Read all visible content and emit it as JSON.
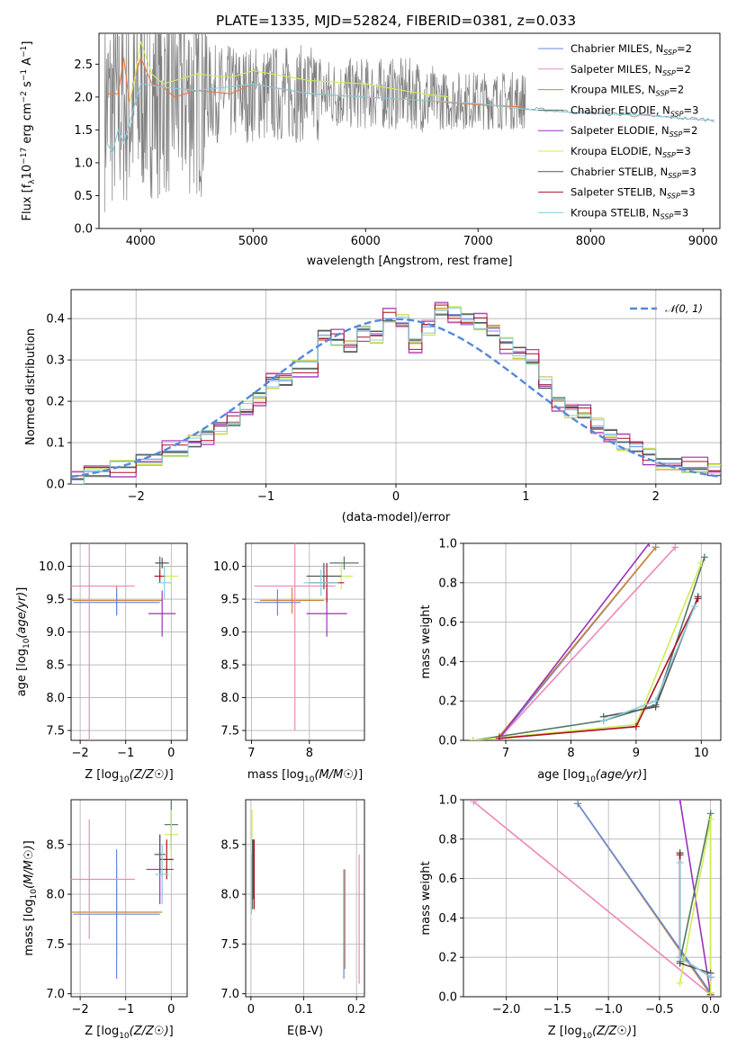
{
  "figure": {
    "title": "PLATE=1335, MJD=52824, FIBERID=0381, z=0.033"
  },
  "series_colors": [
    "#6688dd",
    "#ee88bb",
    "#cc8833",
    "#557766",
    "#9933bb",
    "#ccee55",
    "#555555",
    "#aa1122",
    "#88ccdd"
  ],
  "chart_data": [
    {
      "id": "spectrum",
      "type": "line",
      "title": "PLATE=1335, MJD=52824, FIBERID=0381, z=0.033",
      "xlabel": "wavelength [Angstrom, rest frame]",
      "ylabel": "Flux [f",
      "ylabel_unit": "10",
      "xlim": [
        3630,
        9150
      ],
      "ylim": [
        0,
        2.97
      ],
      "xticks": [
        4000,
        5000,
        6000,
        7000,
        8000,
        9000
      ],
      "yticks": [
        0.0,
        0.5,
        1.0,
        1.5,
        2.0,
        2.5
      ],
      "grid": false,
      "legend_position": "top-right",
      "legend": [
        {
          "model": "Chabrier MILES, N",
          "nssp": "2"
        },
        {
          "model": "Salpeter MILES, N",
          "nssp": "2"
        },
        {
          "model": "Kroupa MILES, N",
          "nssp": "2"
        },
        {
          "model": "Chabrier ELODIE, N",
          "nssp": "3"
        },
        {
          "model": "Salpeter ELODIE, N",
          "nssp": "2"
        },
        {
          "model": "Kroupa ELODIE, N",
          "nssp": "3"
        },
        {
          "model": "Chabrier STELIB, N",
          "nssp": "3"
        },
        {
          "model": "Salpeter STELIB, N",
          "nssp": "3"
        },
        {
          "model": "Kroupa STELIB, N",
          "nssp": "3"
        }
      ],
      "observed": {
        "x_range": [
          3680,
          7420
        ],
        "median_flux": 2.05,
        "color": "#808080"
      },
      "models": [
        {
          "x": [
            3710,
            3800,
            3850,
            3900,
            3950,
            4000,
            4100,
            4200,
            4300,
            4500,
            4800,
            5000,
            5500,
            6000,
            6500,
            7000,
            7400
          ],
          "y": [
            2.05,
            2.05,
            2.6,
            1.9,
            2.3,
            2.6,
            2.2,
            2.15,
            2.0,
            2.1,
            2.05,
            2.2,
            2.05,
            2.0,
            1.95,
            1.88,
            1.85
          ],
          "color": "#ee7744",
          "name": "MILES"
        },
        {
          "x": [
            3900,
            3950,
            4000,
            4100,
            4200,
            4300,
            4500,
            4800,
            5000,
            5500,
            6000,
            6500,
            6750
          ],
          "y": [
            1.9,
            2.3,
            2.85,
            2.35,
            2.2,
            2.25,
            2.35,
            2.3,
            2.4,
            2.25,
            2.2,
            2.05,
            2.0
          ],
          "color": "#ccee55",
          "name": "ELODIE"
        },
        {
          "x": [
            3700,
            3750,
            3800,
            3850,
            3900,
            4000,
            4200,
            4500,
            5000,
            5500,
            6000,
            6500,
            7000,
            7500,
            8000,
            8500,
            9000,
            9100
          ],
          "y": [
            1.3,
            1.15,
            1.5,
            1.3,
            1.6,
            2.2,
            2.15,
            2.1,
            2.2,
            2.05,
            2.0,
            1.95,
            1.9,
            1.8,
            1.75,
            1.72,
            1.65,
            1.65
          ],
          "color": "#88ccdd",
          "name": "STELIB"
        }
      ]
    },
    {
      "id": "residuals",
      "type": "line",
      "xlabel": "(data-model)/error",
      "ylabel": "Normed distribution",
      "xlim": [
        -2.5,
        2.5
      ],
      "ylim": [
        0,
        0.47
      ],
      "xticks": [
        -2,
        -1,
        0,
        1,
        2
      ],
      "xtick_labels": [
        "−2",
        "−1",
        "0",
        "1",
        "2"
      ],
      "yticks": [
        0.0,
        0.1,
        0.2,
        0.3,
        0.4
      ],
      "grid": true,
      "legend_position": "top-right",
      "reference_label": "𝒩(0, 1)",
      "reference": {
        "mean": 0,
        "sigma": 1,
        "color": "#5588dd"
      },
      "bin_edges": [
        -2.5,
        -2.4,
        -2.2,
        -2.0,
        -1.8,
        -1.6,
        -1.5,
        -1.4,
        -1.3,
        -1.2,
        -1.1,
        -1.0,
        -0.9,
        -0.8,
        -0.6,
        -0.5,
        -0.4,
        -0.3,
        -0.2,
        -0.1,
        0.0,
        0.1,
        0.2,
        0.3,
        0.4,
        0.5,
        0.6,
        0.7,
        0.8,
        0.9,
        1.0,
        1.1,
        1.2,
        1.3,
        1.4,
        1.5,
        1.6,
        1.7,
        1.8,
        1.9,
        2.0,
        2.2,
        2.4,
        2.5
      ],
      "hist_values": [
        0.01,
        0.03,
        0.04,
        0.06,
        0.08,
        0.1,
        0.12,
        0.14,
        0.15,
        0.18,
        0.21,
        0.25,
        0.25,
        0.28,
        0.36,
        0.35,
        0.33,
        0.37,
        0.36,
        0.4,
        0.39,
        0.34,
        0.38,
        0.42,
        0.41,
        0.4,
        0.39,
        0.37,
        0.34,
        0.32,
        0.3,
        0.24,
        0.2,
        0.18,
        0.17,
        0.14,
        0.12,
        0.1,
        0.09,
        0.07,
        0.05,
        0.04,
        0.03
      ]
    },
    {
      "id": "age-vs-Z",
      "type": "scatter",
      "xlabel": "Z [log",
      "ylabel": "age  [log",
      "xlim": [
        -2.2,
        0.35
      ],
      "ylim": [
        7.35,
        10.35
      ],
      "xticks": [
        -2,
        -1,
        0
      ],
      "xtick_labels": [
        "−2",
        "−1",
        "0"
      ],
      "yticks": [
        7.5,
        8.0,
        8.5,
        9.0,
        9.5,
        10.0
      ],
      "grid": true,
      "points": [
        {
          "x": -1.2,
          "y": 9.48,
          "xerr": 1.0,
          "yerr": 0.22,
          "color": "#cc8833"
        },
        {
          "x": -1.2,
          "y": 9.45,
          "xerr": 0.95,
          "yerr": 0.2,
          "color": "#6688dd"
        },
        {
          "x": -1.8,
          "y": 9.7,
          "xerr": 1.0,
          "yerr": 2.45,
          "color": "#ee88bb"
        },
        {
          "x": -0.25,
          "y": 10.05,
          "xerr": 0.1,
          "yerr": 0.1,
          "color": "#557766"
        },
        {
          "x": -0.2,
          "y": 9.28,
          "xerr": 0.3,
          "yerr": 0.35,
          "color": "#9933bb"
        },
        {
          "x": 0.0,
          "y": 9.85,
          "xerr": 0.15,
          "yerr": 0.15,
          "color": "#ccee55"
        },
        {
          "x": -0.2,
          "y": 10.05,
          "xerr": 0.15,
          "yerr": 0.08,
          "color": "#555555"
        },
        {
          "x": -0.25,
          "y": 9.85,
          "xerr": 0.12,
          "yerr": 0.1,
          "color": "#aa1122"
        },
        {
          "x": -0.15,
          "y": 9.75,
          "xerr": 0.15,
          "yerr": 0.25,
          "color": "#88ccdd"
        }
      ]
    },
    {
      "id": "age-vs-mass",
      "type": "scatter",
      "xlabel": "mass [log",
      "xlim": [
        6.9,
        8.95
      ],
      "ylim": [
        7.35,
        10.35
      ],
      "xticks": [
        7,
        8
      ],
      "yticks": [
        7.5,
        8.0,
        8.5,
        9.0,
        9.5,
        10.0
      ],
      "grid": true,
      "points": [
        {
          "x": 7.7,
          "y": 9.48,
          "xerr": 0.55,
          "yerr": 0.2,
          "color": "#cc8833"
        },
        {
          "x": 7.45,
          "y": 9.45,
          "xerr": 0.4,
          "yerr": 0.2,
          "color": "#6688dd"
        },
        {
          "x": 7.75,
          "y": 9.7,
          "xerr": 0.7,
          "yerr": 2.2,
          "color": "#ee88bb"
        },
        {
          "x": 8.6,
          "y": 10.05,
          "xerr": 0.25,
          "yerr": 0.1,
          "color": "#557766"
        },
        {
          "x": 8.3,
          "y": 9.28,
          "xerr": 0.35,
          "yerr": 0.35,
          "color": "#9933bb"
        },
        {
          "x": 8.55,
          "y": 9.85,
          "xerr": 0.2,
          "yerr": 0.2,
          "color": "#ccee55"
        },
        {
          "x": 8.25,
          "y": 9.85,
          "xerr": 0.3,
          "yerr": 0.2,
          "color": "#555555"
        },
        {
          "x": 8.3,
          "y": 9.75,
          "xerr": 0.3,
          "yerr": 0.3,
          "color": "#aa1122"
        },
        {
          "x": 8.2,
          "y": 9.75,
          "xerr": 0.3,
          "yerr": 0.2,
          "color": "#88ccdd"
        }
      ]
    },
    {
      "id": "weight-vs-age",
      "type": "line",
      "xlabel": "age  [log",
      "ylabel": "mass weight",
      "xlim": [
        6.35,
        10.3
      ],
      "ylim": [
        0,
        1.0
      ],
      "xticks": [
        7,
        8,
        9,
        10
      ],
      "yticks": [
        0.0,
        0.2,
        0.4,
        0.6,
        0.8,
        1.0
      ],
      "grid": true,
      "series": [
        {
          "x": [
            6.9,
            9.3
          ],
          "y": [
            0.01,
            0.98
          ],
          "color": "#6688dd"
        },
        {
          "x": [
            6.9,
            9.6
          ],
          "y": [
            0.01,
            0.98
          ],
          "color": "#ee88bb"
        },
        {
          "x": [
            6.9,
            9.3
          ],
          "y": [
            0.02,
            0.98
          ],
          "color": "#cc8833"
        },
        {
          "x": [
            6.5,
            8.5,
            9.3,
            10.05
          ],
          "y": [
            0.0,
            0.1,
            0.18,
            0.93
          ],
          "color": "#557766"
        },
        {
          "x": [
            6.9,
            9.2
          ],
          "y": [
            0.01,
            1.0
          ],
          "color": "#9933bb"
        },
        {
          "x": [
            6.5,
            9.0,
            10.0
          ],
          "y": [
            0.0,
            0.08,
            0.9
          ],
          "color": "#ccee55"
        },
        {
          "x": [
            8.5,
            9.3,
            9.95
          ],
          "y": [
            0.12,
            0.17,
            0.73
          ],
          "color": "#555555"
        },
        {
          "x": [
            6.9,
            9.0,
            9.95
          ],
          "y": [
            0.01,
            0.07,
            0.72
          ],
          "color": "#aa1122"
        },
        {
          "x": [
            8.5,
            9.3,
            9.9
          ],
          "y": [
            0.1,
            0.2,
            0.68
          ],
          "color": "#88ccdd"
        }
      ]
    },
    {
      "id": "mass-vs-Z",
      "type": "scatter",
      "xlabel": "Z [log",
      "ylabel": "mass [log",
      "xlim": [
        -2.2,
        0.35
      ],
      "ylim": [
        6.97,
        8.95
      ],
      "xticks": [
        -2,
        -1,
        0
      ],
      "xtick_labels": [
        "−2",
        "−1",
        "0"
      ],
      "yticks": [
        7.0,
        7.5,
        8.0,
        8.5
      ],
      "grid": true,
      "points": [
        {
          "x": -1.2,
          "y": 7.82,
          "xerr": 1.0,
          "yerr": 0.45,
          "color": "#cc8833"
        },
        {
          "x": -1.2,
          "y": 7.8,
          "xerr": 0.95,
          "yerr": 0.65,
          "color": "#6688dd"
        },
        {
          "x": -1.8,
          "y": 8.15,
          "xerr": 1.0,
          "yerr": 0.6,
          "color": "#ee88bb"
        },
        {
          "x": 0.0,
          "y": 8.7,
          "xerr": 0.15,
          "yerr": 0.25,
          "color": "#557766"
        },
        {
          "x": -0.25,
          "y": 8.25,
          "xerr": 0.3,
          "yerr": 0.35,
          "color": "#9933bb"
        },
        {
          "x": 0.0,
          "y": 8.6,
          "xerr": 0.15,
          "yerr": 0.25,
          "color": "#ccee55"
        },
        {
          "x": -0.25,
          "y": 8.4,
          "xerr": 0.12,
          "yerr": 0.2,
          "color": "#555555"
        },
        {
          "x": -0.1,
          "y": 8.35,
          "xerr": 0.15,
          "yerr": 0.2,
          "color": "#aa1122"
        },
        {
          "x": -0.2,
          "y": 8.2,
          "xerr": 0.15,
          "yerr": 0.3,
          "color": "#88ccdd"
        }
      ]
    },
    {
      "id": "mass-vs-EBV",
      "type": "scatter",
      "xlabel": "E(B-V)",
      "xlim": [
        -0.01,
        0.215
      ],
      "ylim": [
        6.97,
        8.95
      ],
      "xticks": [
        0.0,
        0.1,
        0.2
      ],
      "yticks": [
        7.0,
        7.5,
        8.0,
        8.5
      ],
      "grid": true,
      "points": [
        {
          "x": 0.176,
          "y": 7.7,
          "xerr": 0,
          "yerr": 0.55,
          "color": "#6688dd"
        },
        {
          "x": 0.178,
          "y": 7.75,
          "xerr": 0,
          "yerr": 0.5,
          "color": "#cc8833"
        },
        {
          "x": 0.205,
          "y": 7.75,
          "xerr": 0,
          "yerr": 0.65,
          "color": "#ee88bb"
        },
        {
          "x": 0.002,
          "y": 8.4,
          "xerr": 0,
          "yerr": 0.45,
          "color": "#ccee55"
        },
        {
          "x": 0.003,
          "y": 8.2,
          "xerr": 0,
          "yerr": 0.35,
          "color": "#557766"
        },
        {
          "x": 0.005,
          "y": 8.25,
          "xerr": 0,
          "yerr": 0.3,
          "color": "#9933bb"
        },
        {
          "x": 0.006,
          "y": 8.2,
          "xerr": 0,
          "yerr": 0.35,
          "color": "#aa1122"
        },
        {
          "x": 0.001,
          "y": 8.1,
          "xerr": 0,
          "yerr": 0.3,
          "color": "#88ccdd"
        },
        {
          "x": 0.004,
          "y": 8.25,
          "xerr": 0,
          "yerr": 0.3,
          "color": "#555555"
        }
      ]
    },
    {
      "id": "weight-vs-Z",
      "type": "line",
      "xlabel": "Z [log",
      "ylabel": "mass weight",
      "xlim": [
        -2.42,
        0.1
      ],
      "ylim": [
        0,
        1.0
      ],
      "xticks": [
        -2.0,
        -1.5,
        -1.0,
        -0.5,
        0.0
      ],
      "xtick_labels": [
        "−2.0",
        "−1.5",
        "−1.0",
        "−0.5",
        "0.0"
      ],
      "yticks": [
        0.0,
        0.2,
        0.4,
        0.6,
        0.8,
        1.0
      ],
      "grid": true,
      "series": [
        {
          "x": [
            -2.32,
            0.0
          ],
          "y": [
            0.99,
            0.01
          ],
          "color": "#ee88bb"
        },
        {
          "x": [
            -1.3,
            0.0
          ],
          "y": [
            0.98,
            0.01
          ],
          "color": "#cc8833"
        },
        {
          "x": [
            -1.3,
            0.0
          ],
          "y": [
            0.98,
            0.02
          ],
          "color": "#6688dd"
        },
        {
          "x": [
            -0.3,
            0.0
          ],
          "y": [
            1.0,
            0.01
          ],
          "color": "#9933bb"
        },
        {
          "x": [
            -0.3,
            -0.3,
            0.0,
            0.0
          ],
          "y": [
            0.73,
            0.18,
            0.93,
            0.1
          ],
          "color": "#557766"
        },
        {
          "x": [
            -0.3,
            0.0,
            0.0
          ],
          "y": [
            0.07,
            0.9,
            0.02
          ],
          "color": "#ccee55"
        },
        {
          "x": [
            -0.3,
            -0.3,
            0.0
          ],
          "y": [
            0.73,
            0.17,
            0.12
          ],
          "color": "#555555"
        },
        {
          "x": [
            -0.3,
            -0.3,
            0.0
          ],
          "y": [
            0.72,
            0.2,
            0.1
          ],
          "color": "#aa1122"
        },
        {
          "x": [
            -0.3,
            -0.3,
            0.0
          ],
          "y": [
            0.68,
            0.2,
            0.1
          ],
          "color": "#88ccdd"
        }
      ]
    }
  ]
}
